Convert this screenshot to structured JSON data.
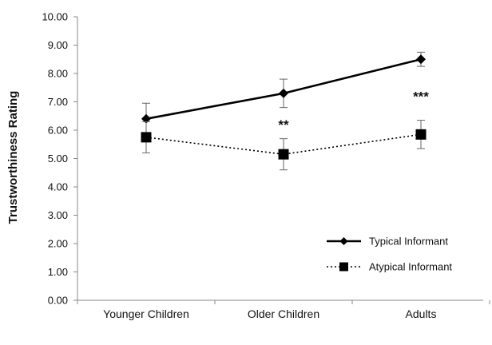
{
  "chart_data": {
    "type": "line",
    "title": "",
    "xlabel": "",
    "ylabel": "Trustworthiness Rating",
    "ylim": [
      0,
      10
    ],
    "y_ticks": [
      "0.00",
      "1.00",
      "2.00",
      "3.00",
      "4.00",
      "5.00",
      "6.00",
      "7.00",
      "8.00",
      "9.00",
      "10.00"
    ],
    "categories": [
      "Younger Children",
      "Older Children",
      "Adults"
    ],
    "grid": false,
    "legend_position": "right",
    "series": [
      {
        "name": "Typical Informant",
        "values": [
          6.4,
          7.3,
          8.5
        ],
        "error": [
          0.55,
          0.5,
          0.25
        ],
        "line_style": "solid",
        "marker": "diamond",
        "color": "#000000"
      },
      {
        "name": "Atypical Informant",
        "values": [
          5.75,
          5.15,
          5.85
        ],
        "error": [
          0.55,
          0.55,
          0.5
        ],
        "line_style": "dotted",
        "marker": "square",
        "color": "#000000"
      }
    ],
    "annotations": [
      {
        "category": "Older Children",
        "text": "**",
        "y": 6.2
      },
      {
        "category": "Adults",
        "text": "***",
        "y": 7.2
      }
    ]
  }
}
